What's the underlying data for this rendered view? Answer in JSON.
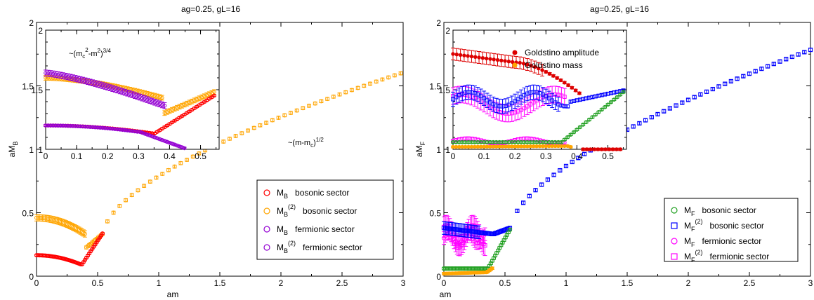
{
  "chart_data": [
    {
      "type": "scatter",
      "title": "ag=0.25, gL=16",
      "xlabel": "am",
      "ylabel": {
        "base": "aM",
        "sub": "B"
      },
      "xlim": [
        0,
        3
      ],
      "ylim": [
        0,
        2
      ],
      "x_ticks": [
        "0",
        "0.5",
        "1",
        "1.5",
        "2",
        "2.5",
        "3"
      ],
      "y_ticks": [
        "0",
        "0.5",
        "1",
        "1.5",
        "2"
      ],
      "legend_position": "lower-right",
      "annotation": {
        "base": "~(m-m",
        "sub": "c",
        "end": ")",
        "sup": "1/2"
      },
      "series": [
        {
          "name": "bosonic sector",
          "base": "M",
          "sub": "B",
          "sup": "",
          "color": "#ff0000",
          "marker": "circle",
          "x_max": 0.55
        },
        {
          "name": "bosonic sector",
          "base": "M",
          "sub": "B",
          "sup": "(2)",
          "color": "#ffa500",
          "marker": "circle",
          "x_max": 3.0
        },
        {
          "name": "fermionic sector",
          "base": "M",
          "sub": "B",
          "sup": "",
          "color": "#9400d3",
          "marker": "circle",
          "x_max": 0.45,
          "inset_only": true
        },
        {
          "name": "fermionic sector",
          "base": "M",
          "sub": "B",
          "sup": "(2)",
          "color": "#9400d3",
          "marker": "circle",
          "x_max": 0.55,
          "inset_only": true
        }
      ],
      "inset": {
        "xlim": [
          0,
          0.56
        ],
        "ylim": [
          1,
          2
        ],
        "x_ticks": [
          "0",
          "0.1",
          "0.2",
          "0.3",
          "0.4",
          "0.5"
        ],
        "y_ticks": [
          "1",
          "1.5",
          "2"
        ],
        "annotation": {
          "a": "~(m",
          "sub1": "c",
          "sup1": "2",
          "b": "-m",
          "sup2": "2",
          "c": ")",
          "sup3": "3/4"
        }
      }
    },
    {
      "type": "scatter",
      "title": "ag=0.25, gL=16",
      "xlabel": "am",
      "ylabel": {
        "base": "aM",
        "sub": "F"
      },
      "xlim": [
        0,
        3
      ],
      "ylim": [
        0,
        2
      ],
      "x_ticks": [
        "0",
        "0.5",
        "1",
        "1.5",
        "2",
        "2.5",
        "3"
      ],
      "y_ticks": [
        "0",
        "0.5",
        "1",
        "1.5",
        "2"
      ],
      "legend_position": "lower-right",
      "series": [
        {
          "name": "bosonic sector",
          "base": "M",
          "sub": "F",
          "sup": "",
          "color": "#22a022",
          "marker": "circle",
          "x_max": 0.55
        },
        {
          "name": "bosonic sector",
          "base": "M",
          "sub": "F",
          "sup": "(2)",
          "color": "#0000ff",
          "marker": "square",
          "x_max": 3.0
        },
        {
          "name": "fermionic sector",
          "base": "M",
          "sub": "F",
          "sup": "",
          "color": "#ff00ff",
          "marker": "circle",
          "x_max": 0.36
        },
        {
          "name": "fermionic sector",
          "base": "M",
          "sub": "F",
          "sup": "(2)",
          "color": "#ff00ff",
          "marker": "square",
          "x_max": 0.36
        }
      ],
      "inset": {
        "xlim": [
          0,
          0.56
        ],
        "ylim": [
          1,
          2
        ],
        "x_ticks": [
          "0",
          "0.1",
          "0.2",
          "0.3",
          "0.4",
          "0.5"
        ],
        "y_ticks": [
          "1",
          "1.5",
          "2"
        ],
        "legend": [
          {
            "label": "Goldstino amplitude",
            "color": "#dd0000"
          },
          {
            "label": "Goldstino mass",
            "color": "#ffa500"
          }
        ]
      }
    }
  ]
}
